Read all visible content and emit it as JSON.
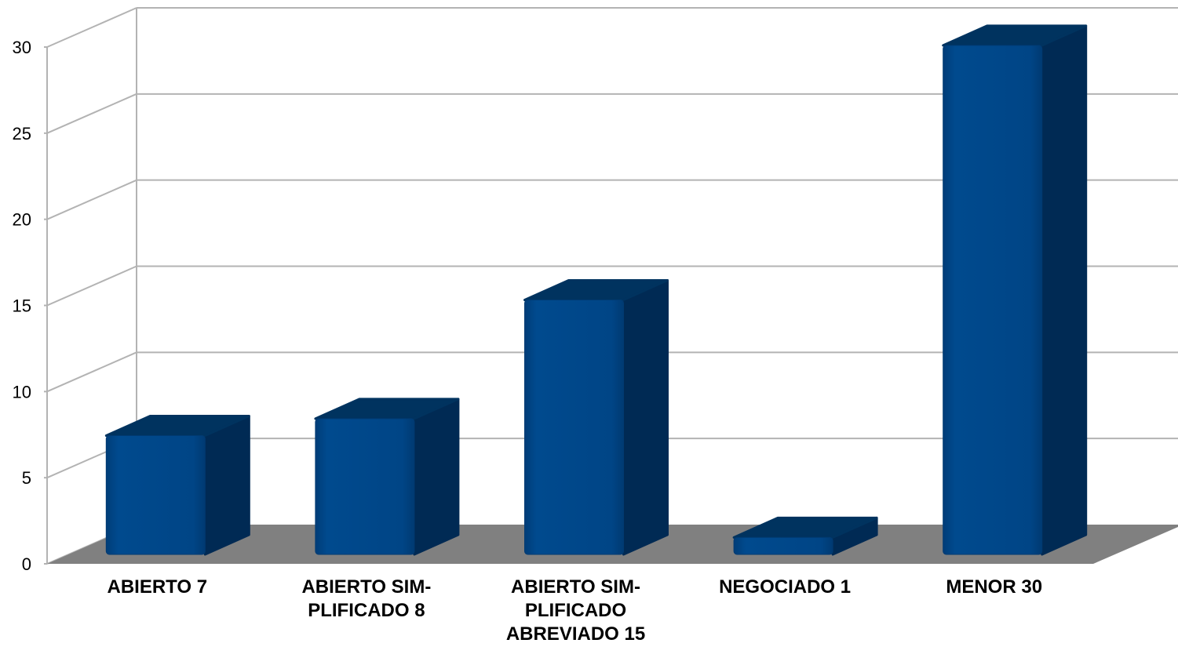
{
  "chart_data": {
    "type": "bar",
    "style": "3d-column",
    "title": "",
    "xlabel": "",
    "ylabel": "",
    "categories": [
      "ABIERTO 7",
      "ABIERTO SIM-PLIFICADO 8",
      "ABIERTO SIM-PLIFICADO ABREVIADO 15",
      "NEGOCIADO 1",
      "MENOR 30"
    ],
    "category_label_lines": [
      [
        "ABIERTO 7"
      ],
      [
        "ABIERTO SIM-",
        "PLIFICADO 8"
      ],
      [
        "ABIERTO SIM-",
        "PLIFICADO",
        "ABREVIADO 15"
      ],
      [
        "NEGOCIADO 1"
      ],
      [
        "MENOR 30"
      ]
    ],
    "values": [
      7,
      8,
      15,
      1,
      30
    ],
    "ylim": [
      0,
      30
    ],
    "yticks": [
      "0",
      "5",
      "10",
      "15",
      "20",
      "25",
      "30"
    ],
    "grid": true,
    "legend": "none",
    "colors": {
      "bar_front": "#004586",
      "bar_side": "#002a54",
      "bar_top": "#00335f",
      "floor": "#808080",
      "grid": "#b3b3b3"
    }
  }
}
